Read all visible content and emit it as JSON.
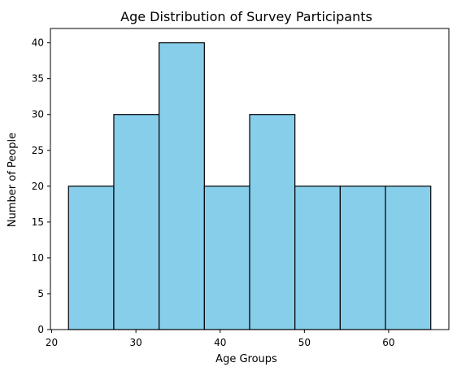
{
  "chart_data": {
    "type": "bar",
    "title": "Age Distribution of Survey Participants",
    "xlabel": "Age Groups",
    "ylabel": "Number of People",
    "bins": [
      {
        "start": 22,
        "end": 27.375,
        "value": 20
      },
      {
        "start": 27.375,
        "end": 32.75,
        "value": 30
      },
      {
        "start": 32.75,
        "end": 38.125,
        "value": 40
      },
      {
        "start": 38.125,
        "end": 43.5,
        "value": 20
      },
      {
        "start": 43.5,
        "end": 48.875,
        "value": 30
      },
      {
        "start": 48.875,
        "end": 54.25,
        "value": 20
      },
      {
        "start": 54.25,
        "end": 59.625,
        "value": 20
      },
      {
        "start": 59.625,
        "end": 65,
        "value": 20
      }
    ],
    "xlim": [
      19.85,
      67.15
    ],
    "ylim": [
      0,
      42
    ],
    "xticks": [
      20,
      30,
      40,
      50,
      60
    ],
    "yticks": [
      0,
      5,
      10,
      15,
      20,
      25,
      30,
      35,
      40
    ],
    "grid": false,
    "colors": {
      "bar_fill": "#87CEEB",
      "bar_edge": "#000000"
    }
  }
}
